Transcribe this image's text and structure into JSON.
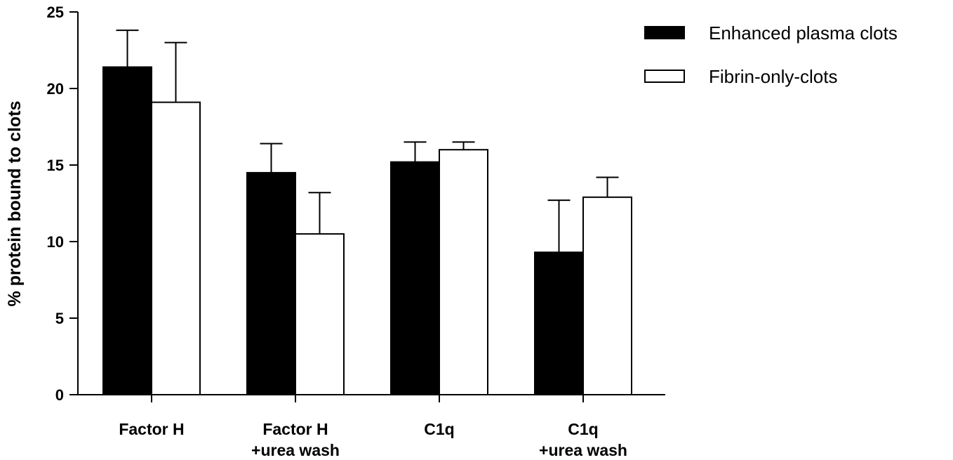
{
  "chart_data": {
    "type": "bar",
    "title": "",
    "xlabel": "",
    "ylabel": "% protein bound to clots",
    "ylim": [
      0,
      25
    ],
    "yticks": [
      0,
      5,
      10,
      15,
      20,
      25
    ],
    "grid": false,
    "legend_position": "top-right",
    "categories": [
      [
        "Factor H"
      ],
      [
        "Factor H",
        "+urea wash"
      ],
      [
        "C1q"
      ],
      [
        "C1q",
        "+urea wash"
      ]
    ],
    "series": [
      {
        "name": "Enhanced plasma clots",
        "color": "#000000",
        "values": [
          21.4,
          14.5,
          15.2,
          9.3
        ],
        "error": [
          2.4,
          1.9,
          1.3,
          3.4
        ]
      },
      {
        "name": "Fibrin-only-clots",
        "color": "#ffffff",
        "values": [
          19.1,
          10.5,
          16.0,
          12.9
        ],
        "error": [
          3.9,
          2.7,
          0.5,
          1.3
        ]
      }
    ]
  }
}
